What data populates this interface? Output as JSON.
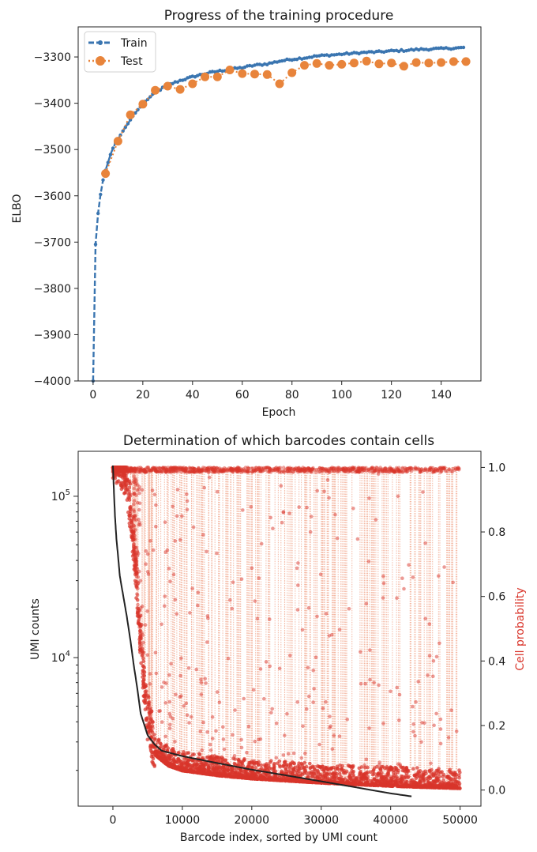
{
  "chart_data": [
    {
      "type": "line",
      "title": "Progress of the training procedure",
      "xlabel": "Epoch",
      "ylabel": "ELBO",
      "xlim": [
        -6,
        156
      ],
      "ylim": [
        -4000,
        -3235
      ],
      "xticks": [
        0,
        20,
        40,
        60,
        80,
        100,
        120,
        140
      ],
      "yticks": [
        -4000,
        -3900,
        -3800,
        -3700,
        -3600,
        -3500,
        -3400,
        -3300
      ],
      "ytick_labels": [
        "−4000",
        "−3900",
        "−3800",
        "−3700",
        "−3600",
        "−3500",
        "−3400",
        "−3300"
      ],
      "legend": "top-left",
      "grid": false,
      "series": [
        {
          "name": "Train",
          "style": "dashed with small markers",
          "color": "#3a75b0",
          "x": [
            0,
            1,
            2,
            3,
            4,
            5,
            6,
            7,
            8,
            9,
            10,
            12,
            14,
            16,
            18,
            20,
            22,
            24,
            26,
            28,
            30,
            35,
            40,
            45,
            50,
            55,
            60,
            65,
            70,
            75,
            80,
            85,
            90,
            95,
            100,
            105,
            110,
            115,
            120,
            125,
            130,
            135,
            140,
            145,
            149
          ],
          "y": [
            -4000,
            -3705,
            -3638,
            -3597,
            -3566,
            -3545,
            -3528,
            -3511,
            -3497,
            -3486,
            -3478,
            -3460,
            -3444,
            -3428,
            -3414,
            -3402,
            -3391,
            -3382,
            -3374,
            -3367,
            -3361,
            -3351,
            -3343,
            -3336,
            -3331,
            -3327,
            -3323,
            -3318,
            -3315,
            -3309,
            -3305,
            -3302,
            -3298,
            -3296,
            -3294,
            -3292,
            -3290,
            -3289,
            -3287,
            -3286,
            -3284,
            -3283,
            -3282,
            -3281,
            -3280
          ]
        },
        {
          "name": "Test",
          "style": "dotted with large markers",
          "color": "#e8843b",
          "x": [
            5,
            10,
            15,
            20,
            25,
            30,
            35,
            40,
            45,
            50,
            55,
            60,
            65,
            70,
            75,
            80,
            85,
            90,
            95,
            100,
            105,
            110,
            115,
            120,
            125,
            130,
            135,
            140,
            145,
            150
          ],
          "y": [
            -3552,
            -3482,
            -3425,
            -3402,
            -3372,
            -3363,
            -3370,
            -3358,
            -3343,
            -3343,
            -3328,
            -3336,
            -3337,
            -3338,
            -3358,
            -3334,
            -3318,
            -3314,
            -3318,
            -3316,
            -3313,
            -3309,
            -3315,
            -3313,
            -3320,
            -3312,
            -3313,
            -3312,
            -3310,
            -3310
          ]
        }
      ]
    },
    {
      "type": "scatter",
      "title": "Determination of which barcodes contain cells",
      "xlabel": "Barcode index, sorted by UMI count",
      "ylabel": "UMI counts",
      "y2label": "Cell probability",
      "y_scale": "log",
      "xlim": [
        -5000,
        53000
      ],
      "ylim": [
        1200,
        190000
      ],
      "y2lim": [
        -0.05,
        1.05
      ],
      "xticks": [
        0,
        10000,
        20000,
        30000,
        40000,
        50000
      ],
      "ytick_labels_major": [
        "10^5",
        "10^4"
      ],
      "yticks_major": [
        100000,
        10000
      ],
      "y2ticks": [
        0.0,
        0.2,
        0.4,
        0.6,
        0.8,
        1.0
      ],
      "colors": {
        "umi_curve": "#222222",
        "cell_probability": "#d9352b",
        "probability_connector": "#f4b7a2"
      },
      "series": [
        {
          "name": "UMI counts",
          "x": [
            0,
            50,
            100,
            200,
            300,
            500,
            800,
            1000,
            1500,
            2000,
            2500,
            3000,
            3500,
            4000,
            5000,
            6000,
            7000,
            10000,
            15000,
            20000,
            25000,
            30000,
            35000,
            40000,
            43000
          ],
          "y": [
            155000,
            140000,
            120000,
            95000,
            75000,
            55000,
            40000,
            32000,
            24000,
            18000,
            13000,
            9000,
            6500,
            4500,
            3300,
            2900,
            2650,
            2450,
            2220,
            2020,
            1860,
            1710,
            1570,
            1440,
            1380
          ]
        },
        {
          "name": "Cell probability (lower envelope)",
          "x": [
            0,
            1000,
            2000,
            3000,
            4000,
            5000,
            6000,
            8000,
            10000,
            15000,
            20000,
            30000,
            40000,
            50000
          ],
          "y": [
            1.0,
            1.0,
            0.95,
            0.75,
            0.45,
            0.2,
            0.11,
            0.075,
            0.06,
            0.045,
            0.035,
            0.022,
            0.012,
            0.005
          ]
        }
      ]
    }
  ]
}
